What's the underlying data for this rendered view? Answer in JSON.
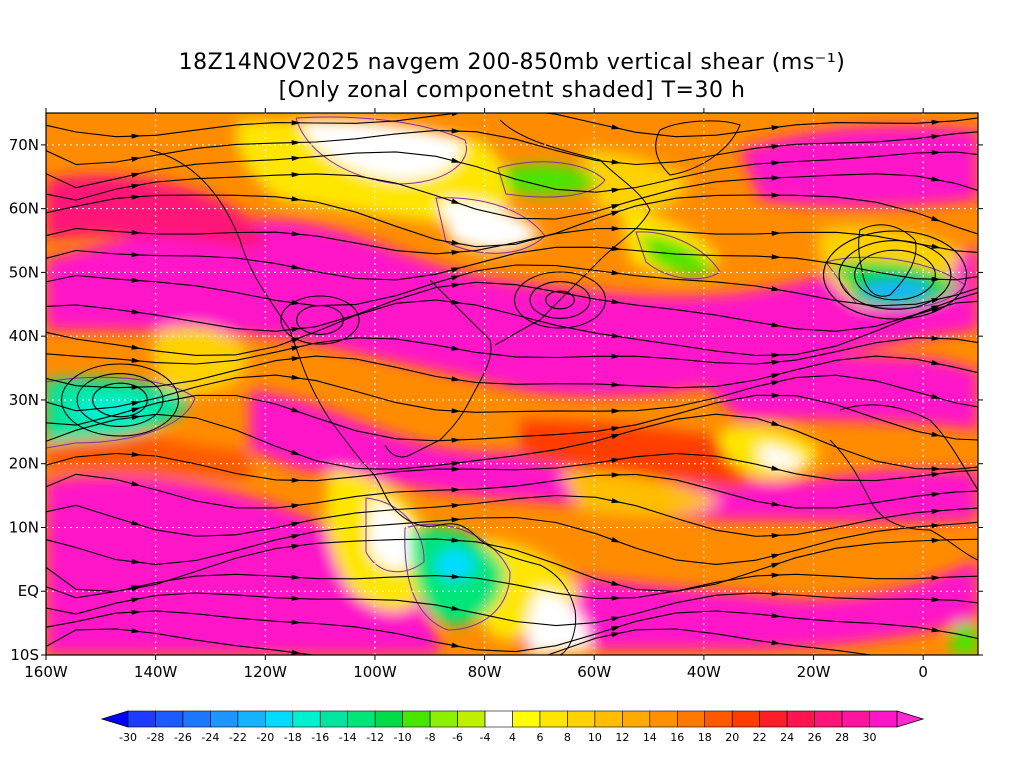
{
  "title": {
    "line1": "18Z14NOV2025 navgem 200-850mb vertical shear (ms⁻¹)",
    "line2": "[Only zonal componetnt shaded] T=30 h"
  },
  "axes": {
    "lat_labels": [
      "70N",
      "60N",
      "50N",
      "40N",
      "30N",
      "20N",
      "10N",
      "EQ",
      "10S"
    ],
    "lat_values": [
      70,
      60,
      50,
      40,
      30,
      20,
      10,
      0,
      -10
    ],
    "lon_labels": [
      "160W",
      "140W",
      "120W",
      "100W",
      "80W",
      "60W",
      "40W",
      "20W",
      "0"
    ],
    "lon_values": [
      -160,
      -140,
      -120,
      -100,
      -80,
      -60,
      -40,
      -20,
      0
    ],
    "lon_range": [
      -160,
      10
    ],
    "lat_range": [
      -10,
      75
    ]
  },
  "colorbar": {
    "labels": [
      "-30",
      "-28",
      "-26",
      "-24",
      "-22",
      "-20",
      "-18",
      "-16",
      "-14",
      "-12",
      "-10",
      "-8",
      "-6",
      "-4",
      "4",
      "6",
      "8",
      "10",
      "12",
      "14",
      "16",
      "18",
      "20",
      "22",
      "24",
      "26",
      "28",
      "30"
    ],
    "colors": [
      "#1e3cff",
      "#1e5aff",
      "#1e78ff",
      "#1e96ff",
      "#14b4ff",
      "#00dcff",
      "#00f0d2",
      "#00e6a0",
      "#00e678",
      "#00dc46",
      "#46e600",
      "#8cf000",
      "#bef000",
      "#ffffff",
      "#ffff00",
      "#ffe600",
      "#ffd200",
      "#ffbe00",
      "#ffaa00",
      "#ff9100",
      "#ff7800",
      "#ff5a00",
      "#ff3c00",
      "#ff1e28",
      "#ff1450",
      "#ff1478",
      "#ff14a0",
      "#ff14c8"
    ],
    "arrow_left_color": "#0000ff",
    "arrow_right_color": "#ff28d2"
  },
  "map": {
    "field": "200-850mb vertical shear, zonal component shaded, streamlines overlaid",
    "contour_color": "#8c28a0",
    "streamline_color": "#000000",
    "gridline_style": "dotted white"
  }
}
